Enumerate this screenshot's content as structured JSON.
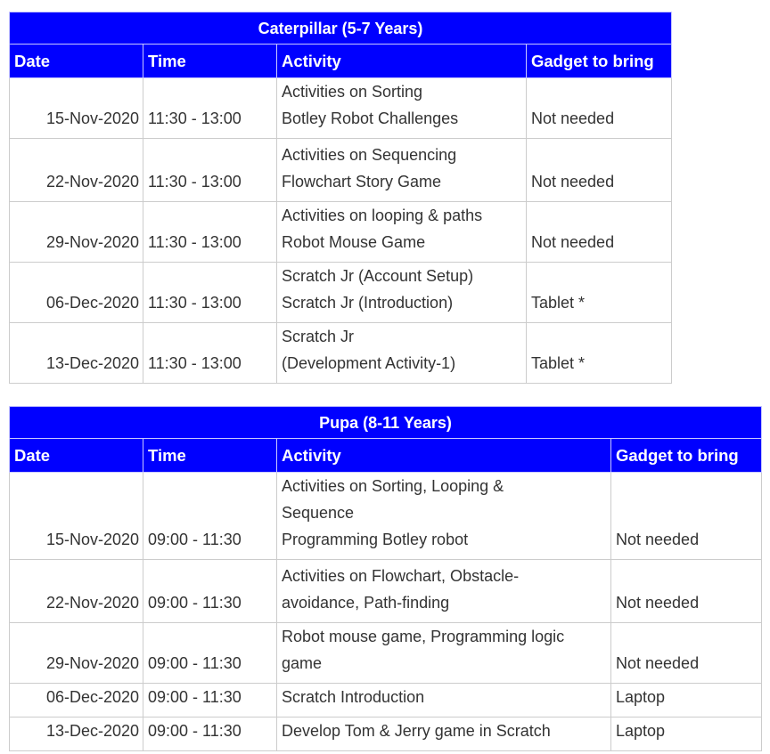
{
  "tables": [
    {
      "title": "Caterpillar (5-7 Years)",
      "headers": [
        "Date",
        "Time",
        "Activity",
        "Gadget to bring"
      ],
      "rows": [
        {
          "date": "15-Nov-2020",
          "time": "11:30 - 13:00",
          "activity": "Activities on Sorting\nBotley Robot Challenges",
          "gadget": "Not needed"
        },
        {
          "date": "22-Nov-2020",
          "time": "11:30 - 13:00",
          "activity": "Activities on Sequencing\nFlowchart Story Game",
          "gadget": "Not needed"
        },
        {
          "date": "29-Nov-2020",
          "time": "11:30 - 13:00",
          "activity": "Activities on looping & paths\nRobot Mouse Game",
          "gadget": "Not needed"
        },
        {
          "date": "06-Dec-2020",
          "time": "11:30 - 13:00",
          "activity": "Scratch Jr (Account Setup)\nScratch Jr (Introduction)",
          "gadget": "Tablet *"
        },
        {
          "date": "13-Dec-2020",
          "time": "11:30 - 13:00",
          "activity": "Scratch Jr\n(Development Activity-1)",
          "gadget": "Tablet *"
        }
      ]
    },
    {
      "title": "Pupa (8-11 Years)",
      "headers": [
        "Date",
        "Time",
        "Activity",
        "Gadget to bring"
      ],
      "rows": [
        {
          "date": "15-Nov-2020",
          "time": "09:00 - 11:30",
          "activity": "Activities on Sorting, Looping &\nSequence\nProgramming Botley robot",
          "gadget": "Not needed"
        },
        {
          "date": "22-Nov-2020",
          "time": "09:00 - 11:30",
          "activity": "Activities on Flowchart, Obstacle-\navoidance, Path-finding",
          "gadget": "Not needed"
        },
        {
          "date": "29-Nov-2020",
          "time": "09:00 - 11:30",
          "activity": "Robot mouse game, Programming logic\ngame",
          "gadget": "Not needed"
        },
        {
          "date": "06-Dec-2020",
          "time": "09:00 - 11:30",
          "activity": "Scratch Introduction",
          "gadget": "Laptop"
        },
        {
          "date": "13-Dec-2020",
          "time": "09:00 - 11:30",
          "activity": "Develop Tom & Jerry game in Scratch",
          "gadget": "Laptop"
        }
      ]
    }
  ],
  "colors": {
    "header_bg": "#0000ff",
    "header_text": "#ffffff",
    "border": "#cccccc",
    "text": "#333333"
  }
}
